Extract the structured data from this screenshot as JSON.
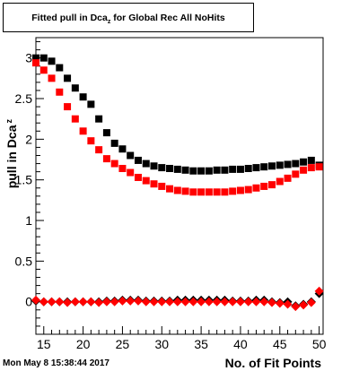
{
  "title": {
    "prefix": "Fitted pull in Dca",
    "sub": "z",
    "suffix": " for Global Rec All NoHits"
  },
  "timestamp": "Mon May  8 15:38:44 2017",
  "chart_data": {
    "type": "scatter",
    "xlabel": "No. of Fit Points",
    "ylabel": "pull in Dca",
    "ylabel_sub": "z",
    "xlim": [
      14,
      50.5
    ],
    "ylim": [
      -0.4,
      3.25
    ],
    "xticks": [
      15,
      20,
      25,
      30,
      35,
      40,
      45,
      50
    ],
    "yticks": [
      0,
      0.5,
      1,
      1.5,
      2,
      2.5,
      3
    ],
    "ytick_labels": [
      "0",
      "0.5",
      "1",
      "1.5",
      "2",
      "2.5",
      "3"
    ],
    "grid": false,
    "x": [
      14,
      15,
      16,
      17,
      18,
      19,
      20,
      21,
      22,
      23,
      24,
      25,
      26,
      27,
      28,
      29,
      30,
      31,
      32,
      33,
      34,
      35,
      36,
      37,
      38,
      39,
      40,
      41,
      42,
      43,
      44,
      45,
      46,
      47,
      48,
      49,
      50
    ],
    "series": [
      {
        "marker": "square",
        "color": "#000000",
        "values": [
          3.0,
          3.0,
          2.96,
          2.88,
          2.75,
          2.63,
          2.52,
          2.43,
          2.25,
          2.08,
          1.95,
          1.88,
          1.8,
          1.74,
          1.7,
          1.67,
          1.65,
          1.64,
          1.63,
          1.62,
          1.61,
          1.61,
          1.61,
          1.62,
          1.62,
          1.63,
          1.63,
          1.64,
          1.65,
          1.66,
          1.67,
          1.68,
          1.69,
          1.7,
          1.72,
          1.74,
          1.68
        ]
      },
      {
        "marker": "square",
        "color": "#ff0000",
        "values": [
          2.94,
          2.85,
          2.75,
          2.58,
          2.4,
          2.25,
          2.1,
          1.98,
          1.87,
          1.76,
          1.7,
          1.64,
          1.59,
          1.53,
          1.49,
          1.45,
          1.42,
          1.39,
          1.37,
          1.36,
          1.35,
          1.35,
          1.35,
          1.35,
          1.35,
          1.36,
          1.37,
          1.38,
          1.4,
          1.42,
          1.44,
          1.48,
          1.52,
          1.57,
          1.62,
          1.65,
          1.66
        ]
      },
      {
        "marker": "diamond",
        "color": "#000000",
        "values": [
          0.01,
          0.0,
          0.0,
          0.0,
          0.0,
          0.0,
          0.0,
          0.0,
          0.0,
          0.01,
          0.01,
          0.02,
          0.02,
          0.02,
          0.01,
          0.01,
          0.01,
          0.01,
          0.02,
          0.02,
          0.02,
          0.02,
          0.02,
          0.02,
          0.02,
          0.01,
          0.01,
          0.01,
          0.02,
          0.02,
          0.0,
          -0.01,
          0.0,
          -0.05,
          -0.03,
          0.0,
          0.1
        ]
      },
      {
        "marker": "diamond",
        "color": "#ff0000",
        "values": [
          0.02,
          0.0,
          0.0,
          0.0,
          -0.01,
          0.0,
          0.0,
          0.0,
          -0.01,
          0.0,
          0.0,
          0.01,
          0.01,
          0.01,
          0.0,
          0.0,
          0.0,
          0.0,
          0.0,
          0.0,
          0.0,
          0.0,
          0.0,
          0.0,
          0.0,
          0.0,
          0.0,
          0.0,
          0.0,
          0.0,
          -0.01,
          -0.02,
          -0.03,
          -0.06,
          -0.04,
          -0.01,
          0.13
        ]
      }
    ]
  }
}
